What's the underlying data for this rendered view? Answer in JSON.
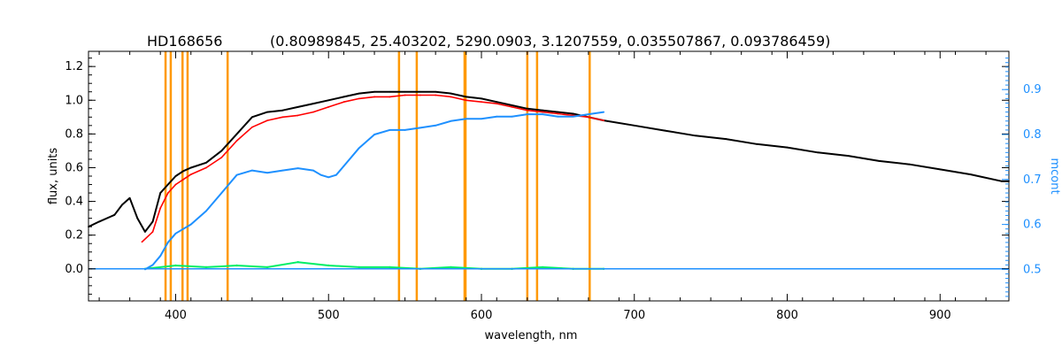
{
  "chart_data": {
    "type": "line",
    "title_object": "HD168656",
    "title_params": "(0.80989845, 25.403202, 5290.0903, 3.1207559, 0.035507867, 0.093786459)",
    "xlabel": "wavelength, nm",
    "ylabel": "flux, units",
    "ylabel_right": "mcont",
    "xlim": [
      343,
      945
    ],
    "ylim": [
      -0.19,
      1.29
    ],
    "ylim_right": [
      0.43,
      0.985
    ],
    "x_ticks": [
      400,
      500,
      600,
      700,
      800,
      900
    ],
    "y_ticks": [
      0.0,
      0.2,
      0.4,
      0.6,
      0.8,
      1.0,
      1.2
    ],
    "y_tick_labels": [
      "0.0",
      "0.2",
      "0.4",
      "0.6",
      "0.8",
      "1.0",
      "1.2"
    ],
    "y_ticks_right": [
      0.5,
      0.6,
      0.7,
      0.8,
      0.9
    ],
    "y_tick_labels_right": [
      "0.5",
      "0.6",
      "0.7",
      "0.8",
      "0.9"
    ],
    "vertical_lines": [
      393.4,
      396.8,
      404.5,
      407.8,
      434.0,
      546.1,
      557.7,
      588.99,
      589.59,
      630.0,
      636.4,
      670.8
    ],
    "colors": {
      "observed": "#000000",
      "model": "#ff0000",
      "continuum": "#1e90ff",
      "residual": "#00ee66",
      "vlines": "#ff9900",
      "axis_right": "#1e90ff"
    },
    "series": [
      {
        "key": "observed",
        "x": [
          343,
          350,
          360,
          365,
          370,
          375,
          380,
          385,
          390,
          395,
          400,
          405,
          410,
          420,
          430,
          440,
          450,
          460,
          470,
          480,
          490,
          500,
          510,
          520,
          530,
          540,
          550,
          560,
          570,
          580,
          590,
          600,
          610,
          620,
          630,
          640,
          650,
          660,
          670,
          680,
          700,
          720,
          740,
          760,
          780,
          800,
          820,
          840,
          860,
          880,
          900,
          920,
          940,
          945
        ],
        "y": [
          0.25,
          0.28,
          0.32,
          0.38,
          0.42,
          0.3,
          0.22,
          0.28,
          0.45,
          0.5,
          0.55,
          0.58,
          0.6,
          0.63,
          0.7,
          0.8,
          0.9,
          0.93,
          0.94,
          0.96,
          0.98,
          1.0,
          1.02,
          1.04,
          1.05,
          1.05,
          1.05,
          1.05,
          1.05,
          1.04,
          1.02,
          1.01,
          0.99,
          0.97,
          0.95,
          0.94,
          0.93,
          0.92,
          0.9,
          0.88,
          0.85,
          0.82,
          0.79,
          0.77,
          0.74,
          0.72,
          0.69,
          0.67,
          0.64,
          0.62,
          0.59,
          0.56,
          0.52,
          0.52
        ]
      },
      {
        "key": "model",
        "x": [
          378,
          385,
          390,
          395,
          400,
          405,
          410,
          420,
          430,
          440,
          450,
          460,
          470,
          480,
          490,
          500,
          510,
          520,
          530,
          540,
          550,
          560,
          570,
          580,
          590,
          600,
          610,
          620,
          630,
          640,
          650,
          660,
          670,
          680
        ],
        "y": [
          0.16,
          0.22,
          0.36,
          0.45,
          0.5,
          0.53,
          0.56,
          0.6,
          0.66,
          0.76,
          0.84,
          0.88,
          0.9,
          0.91,
          0.93,
          0.96,
          0.99,
          1.01,
          1.02,
          1.02,
          1.03,
          1.03,
          1.03,
          1.02,
          1.0,
          0.99,
          0.98,
          0.96,
          0.94,
          0.93,
          0.92,
          0.91,
          0.9,
          0.88
        ]
      },
      {
        "key": "continuum",
        "axis": "right",
        "x": [
          380,
          385,
          390,
          395,
          400,
          405,
          410,
          420,
          430,
          440,
          450,
          460,
          470,
          480,
          490,
          495,
          500,
          505,
          510,
          520,
          530,
          540,
          550,
          560,
          570,
          580,
          590,
          600,
          610,
          620,
          630,
          640,
          650,
          660,
          670,
          680
        ],
        "y": [
          0.5,
          0.51,
          0.53,
          0.56,
          0.58,
          0.59,
          0.6,
          0.63,
          0.67,
          0.71,
          0.72,
          0.715,
          0.72,
          0.725,
          0.72,
          0.71,
          0.705,
          0.71,
          0.73,
          0.77,
          0.8,
          0.81,
          0.81,
          0.815,
          0.82,
          0.83,
          0.835,
          0.835,
          0.84,
          0.84,
          0.845,
          0.845,
          0.84,
          0.84,
          0.845,
          0.85
        ]
      },
      {
        "key": "residual",
        "x": [
          380,
          400,
          420,
          440,
          460,
          480,
          500,
          520,
          540,
          560,
          580,
          600,
          620,
          640,
          660,
          680
        ],
        "y": [
          0.0,
          0.02,
          0.01,
          0.02,
          0.01,
          0.04,
          0.02,
          0.01,
          0.01,
          0.0,
          0.01,
          0.0,
          0.0,
          0.01,
          0.0,
          0.0
        ]
      }
    ]
  }
}
